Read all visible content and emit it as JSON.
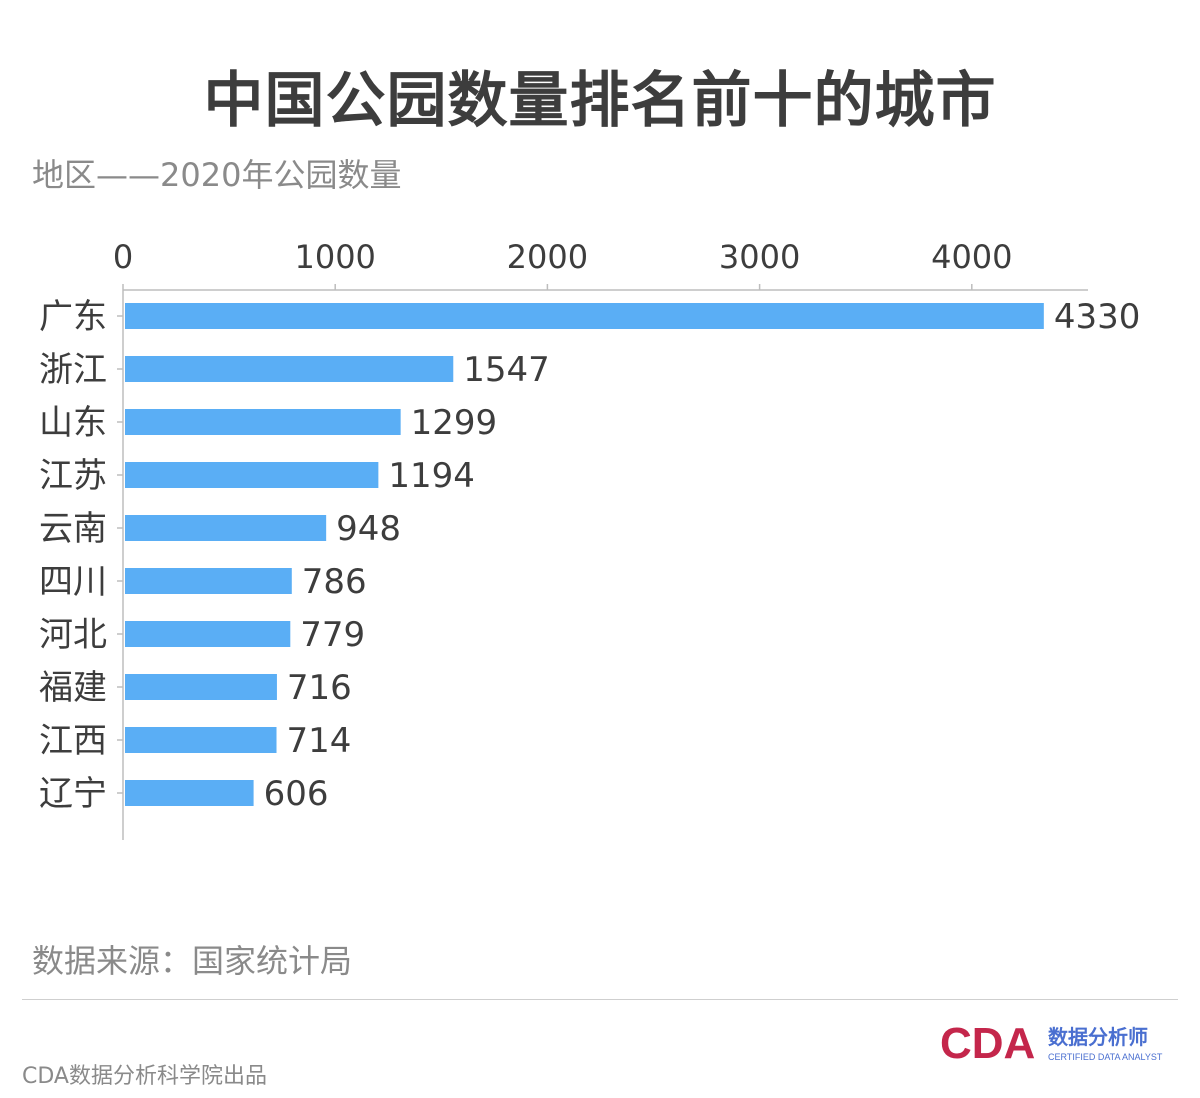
{
  "title": "中国公园数量排名前十的城市",
  "subtitle": "地区——2020年公园数量",
  "source": "数据来源：国家统计局",
  "footer": "CDA数据分析科学院出品",
  "logo": {
    "mark": "CDA",
    "cn": "数据分析师",
    "en": "CERTIFIED DATA ANALYST"
  },
  "colors": {
    "bar": "#5aaef5",
    "text": "#3d3d3d",
    "muted": "#8a8a8a",
    "axis": "#bdbdbd"
  },
  "chart_data": {
    "type": "bar",
    "orientation": "horizontal",
    "categories": [
      "广东",
      "浙江",
      "山东",
      "江苏",
      "云南",
      "四川",
      "河北",
      "福建",
      "江西",
      "辽宁"
    ],
    "values": [
      4330,
      1547,
      1299,
      1194,
      948,
      786,
      779,
      716,
      714,
      606
    ],
    "xticks": [
      0,
      1000,
      2000,
      3000,
      4000
    ],
    "xlim": [
      0,
      4500
    ],
    "axis_position": "top",
    "grid": false,
    "legend": "none",
    "data_labels": true
  }
}
